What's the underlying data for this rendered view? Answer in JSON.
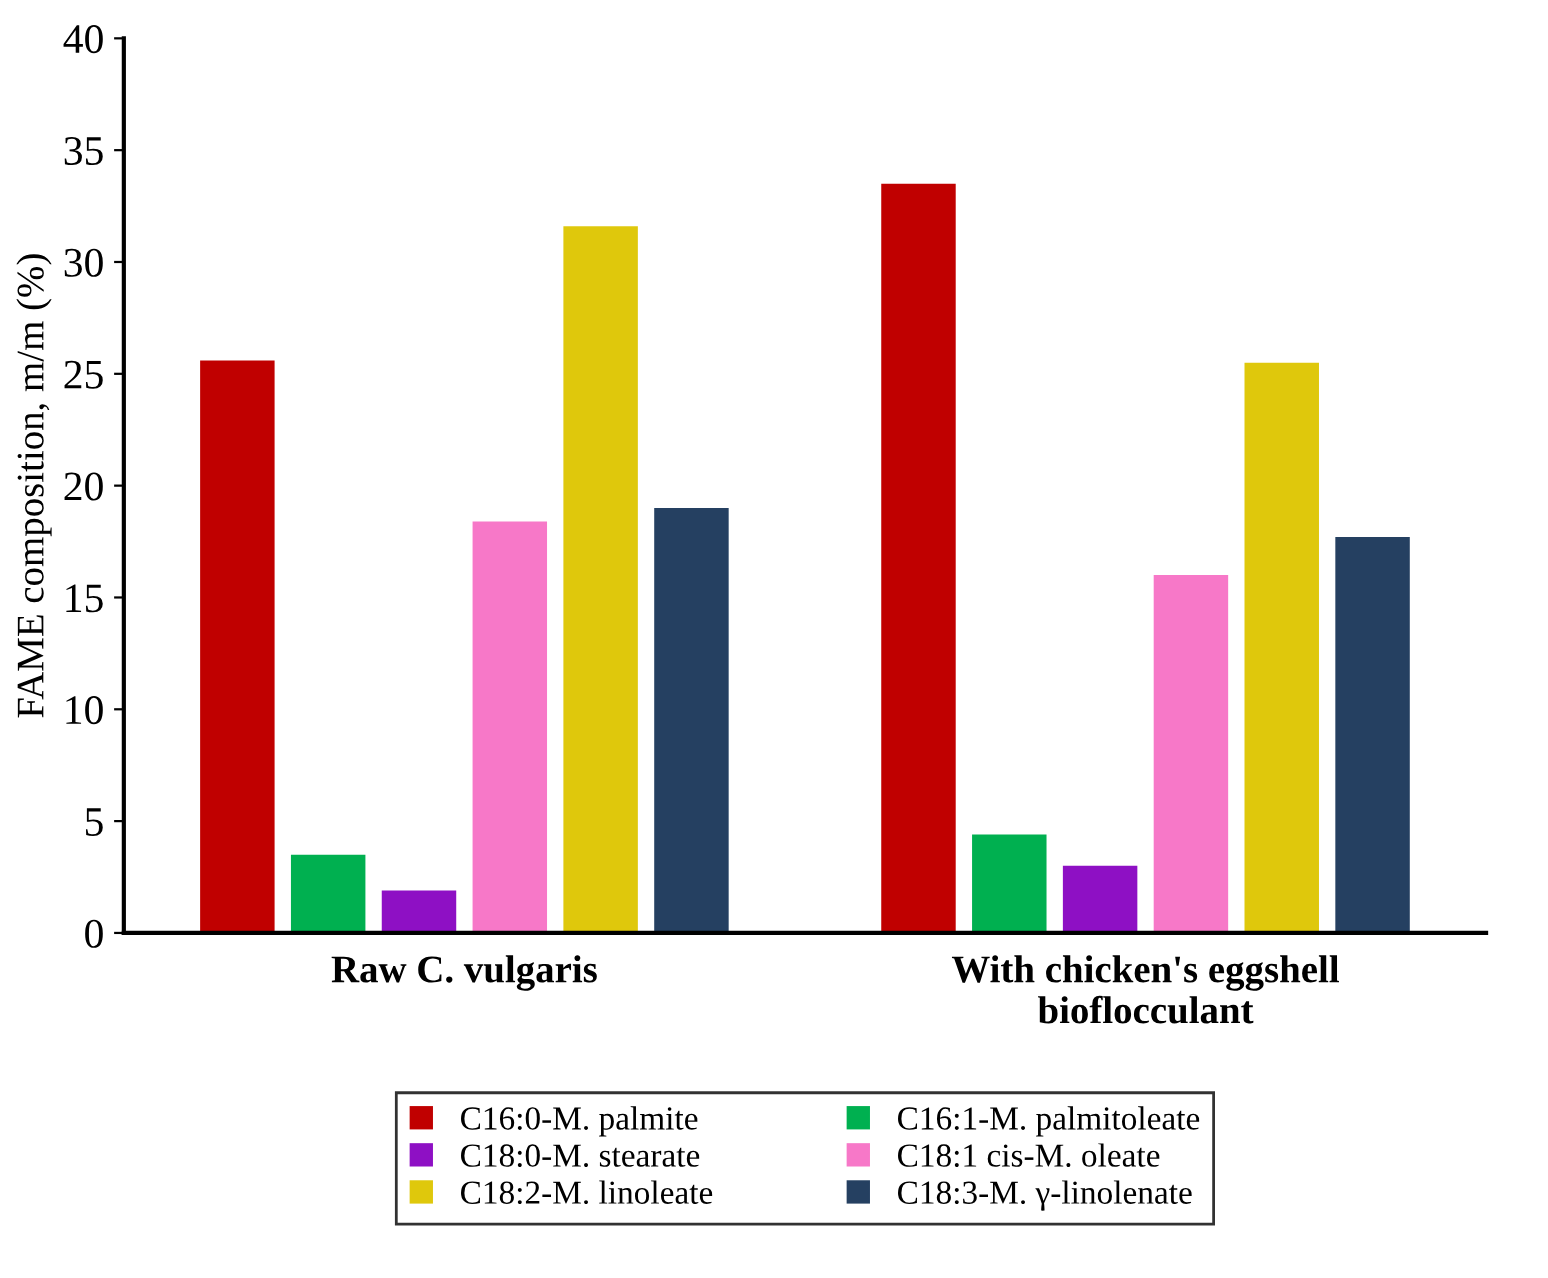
{
  "chart_data": {
    "type": "bar",
    "ylabel": "FAME composition, m/m (%)",
    "categories": [
      "Raw C. vulgaris",
      "With chicken's eggshell\nbioflocculant"
    ],
    "series": [
      {
        "name": "C16:0-M. palmite",
        "color": "#c00000",
        "values": [
          25.6,
          33.5
        ]
      },
      {
        "name": "C16:1-M. palmitoleate",
        "color": "#00b050",
        "values": [
          3.5,
          4.4
        ]
      },
      {
        "name": "C18:0-M. stearate",
        "color": "#8e10c4",
        "values": [
          1.9,
          3.0
        ]
      },
      {
        "name": "C18:1 cis-M. oleate",
        "color": "#f778c8",
        "values": [
          18.4,
          16.0
        ]
      },
      {
        "name": "C18:2-M. linoleate",
        "color": "#dfc80c",
        "values": [
          31.6,
          25.5
        ]
      },
      {
        "name": "C18:3-M. γ-linolenate",
        "color": "#254061",
        "values": [
          19.0,
          17.7
        ]
      }
    ],
    "ylim": [
      0,
      40
    ],
    "yticks": [
      0,
      5,
      10,
      15,
      20,
      25,
      30,
      35,
      40
    ],
    "grid": false,
    "legend": "bottom"
  }
}
